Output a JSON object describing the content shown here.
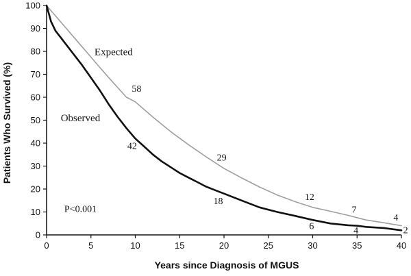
{
  "chart_data": {
    "type": "line",
    "xlabel": "Years since Diagnosis of MGUS",
    "ylabel": "Patients Who Survived (%)",
    "xlim": [
      0,
      40
    ],
    "ylim": [
      0,
      100
    ],
    "xticks": [
      0,
      5,
      10,
      15,
      20,
      25,
      30,
      35,
      40
    ],
    "yticks": [
      0,
      10,
      20,
      30,
      40,
      50,
      60,
      70,
      80,
      90,
      100
    ],
    "grid": false,
    "legend": "none",
    "series": [
      {
        "name": "Expected",
        "color": "#9e9e9e",
        "x": [
          0,
          1,
          2,
          3,
          4,
          5,
          6,
          7,
          8,
          9,
          10,
          12,
          14,
          16,
          18,
          20,
          22,
          24,
          26,
          28,
          30,
          32,
          34,
          36,
          38,
          40
        ],
        "y": [
          100,
          95.5,
          91,
          86.5,
          82,
          77.5,
          73,
          68.6,
          64.3,
          60,
          58,
          51.3,
          45,
          39.3,
          34,
          29,
          24.8,
          20.9,
          17.4,
          14.5,
          12,
          10.3,
          8.5,
          6.5,
          5.3,
          4
        ]
      },
      {
        "name": "Observed",
        "color": "#111111",
        "x": [
          0,
          0.5,
          1,
          2,
          3,
          4,
          5,
          6,
          7,
          8,
          9,
          10,
          11,
          12,
          13,
          14,
          15,
          16,
          17,
          18,
          19,
          20,
          22,
          24,
          26,
          28,
          30,
          32,
          34,
          35,
          36,
          38,
          40
        ],
        "y": [
          100,
          93,
          89,
          84,
          79,
          74,
          68.5,
          63,
          57,
          51.5,
          46.5,
          42,
          38.5,
          35,
          32,
          29.5,
          27,
          25,
          23,
          21,
          19.5,
          18,
          15,
          12,
          10,
          8.3,
          6.5,
          5,
          4.2,
          4,
          3.5,
          3,
          2
        ]
      }
    ],
    "series_labels": [
      {
        "text": "Expected",
        "x": 5.4,
        "y": 78.3
      },
      {
        "text": "Observed",
        "x": 1.6,
        "y": 49.5
      }
    ],
    "data_labels": [
      {
        "series": "Expected",
        "text": "58",
        "x": 9.6,
        "y": 62.4
      },
      {
        "series": "Expected",
        "text": "29",
        "x": 19.2,
        "y": 32.4
      },
      {
        "series": "Expected",
        "text": "12",
        "x": 29.1,
        "y": 15.2
      },
      {
        "series": "Expected",
        "text": "7",
        "x": 34.4,
        "y": 9.7
      },
      {
        "series": "Expected",
        "text": "4",
        "x": 39.1,
        "y": 6.2
      },
      {
        "series": "Observed",
        "text": "42",
        "x": 9.1,
        "y": 37.4
      },
      {
        "series": "Observed",
        "text": "18",
        "x": 18.8,
        "y": 13.5
      },
      {
        "series": "Observed",
        "text": "6",
        "x": 29.6,
        "y": 2.6
      },
      {
        "series": "Observed",
        "text": "4",
        "x": 34.6,
        "y": 0.6
      },
      {
        "series": "Observed",
        "text": "2",
        "x": 40.2,
        "y": 0.8
      }
    ],
    "annotations": [
      {
        "text": "P<0.001",
        "x": 2.0,
        "y": 10.0
      }
    ]
  }
}
